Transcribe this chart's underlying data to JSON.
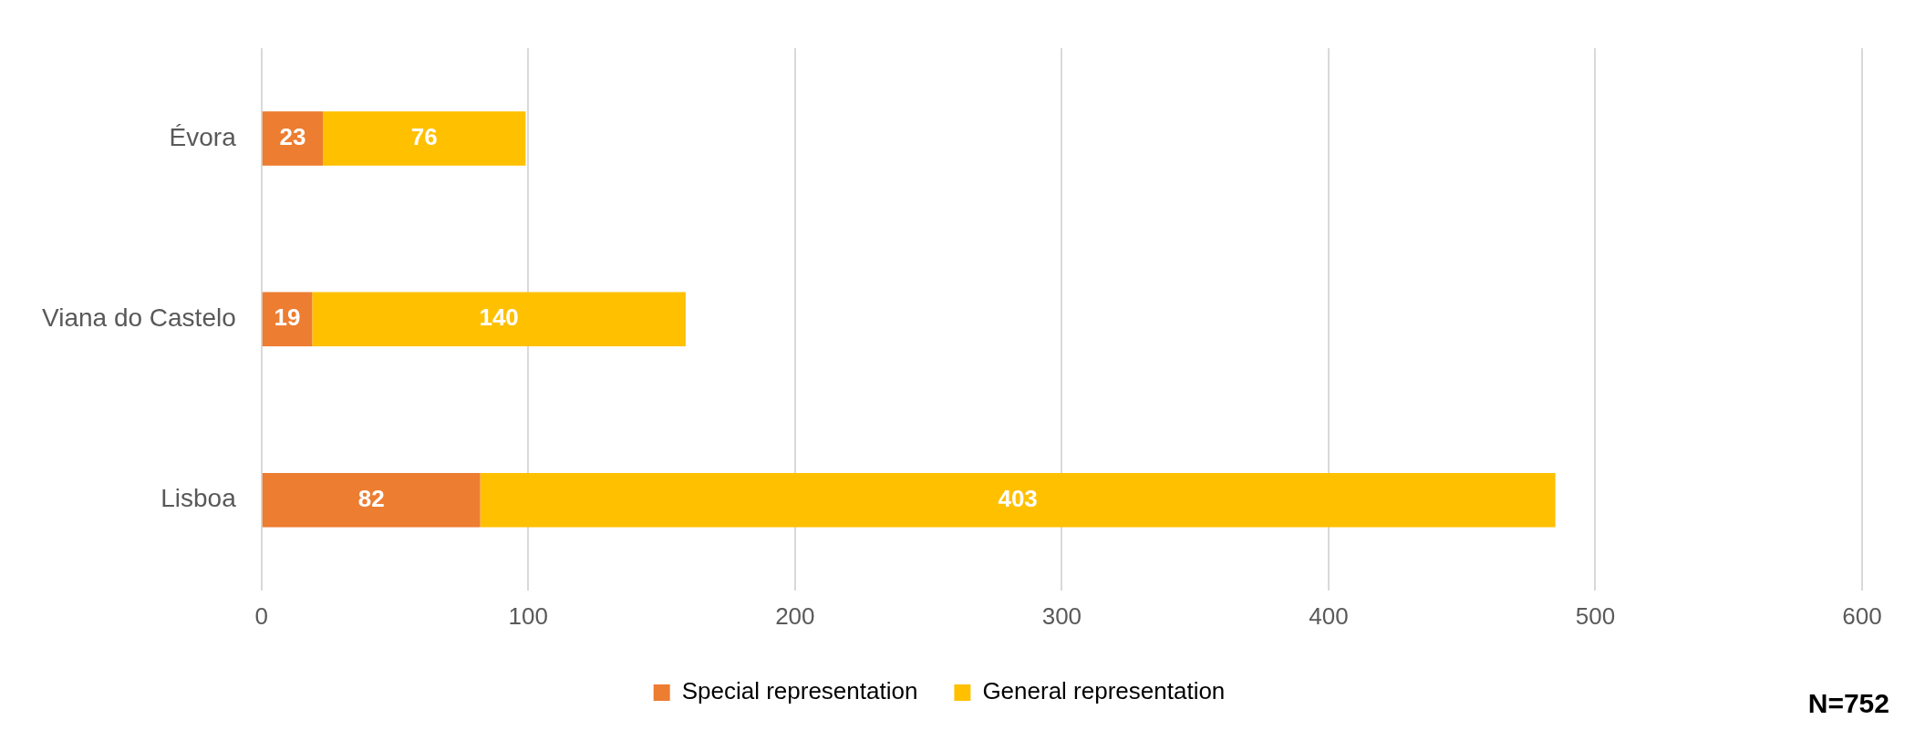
{
  "chart_data": {
    "type": "bar",
    "orientation": "horizontal",
    "stacked": true,
    "categories": [
      "Évora",
      "Viana do Castelo",
      "Lisboa"
    ],
    "series": [
      {
        "name": "Special representation",
        "color": "#ed7d31",
        "values": [
          23,
          19,
          82
        ]
      },
      {
        "name": "General representation",
        "color": "#ffc000",
        "values": [
          76,
          140,
          403
        ]
      }
    ],
    "xlim": [
      0,
      600
    ],
    "xticks": [
      0,
      100,
      200,
      300,
      400,
      500,
      600
    ],
    "grid": "x",
    "legend": "bottom",
    "data_labels": true,
    "annotations": [
      "N=752"
    ]
  }
}
